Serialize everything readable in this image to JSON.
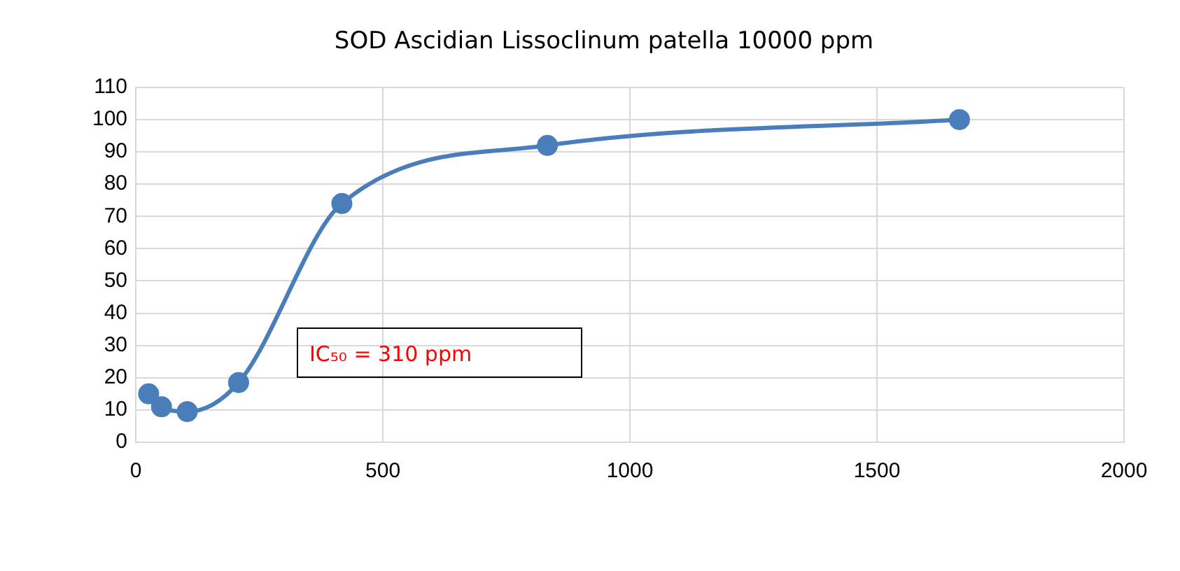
{
  "chart_data": {
    "type": "line",
    "title": "SOD Ascidian Lissoclinum patella 10000 ppm",
    "x": [
      26,
      52,
      104,
      208,
      417,
      833,
      1667
    ],
    "series": [
      {
        "color": "#4a7ebb",
        "values": [
          15,
          11,
          9.5,
          18.5,
          74,
          92,
          100
        ]
      }
    ],
    "xlim": [
      0,
      2000
    ],
    "xticks": [
      0,
      500,
      1000,
      1500,
      2000
    ],
    "ylim": [
      0,
      110
    ],
    "yticks": [
      0,
      10,
      20,
      30,
      40,
      50,
      60,
      70,
      80,
      90,
      100,
      110
    ],
    "grid": true,
    "legend": false,
    "marker": "circle",
    "line_style": "solid",
    "annotations": [
      "IC₅₀ = 310 ppm"
    ]
  }
}
